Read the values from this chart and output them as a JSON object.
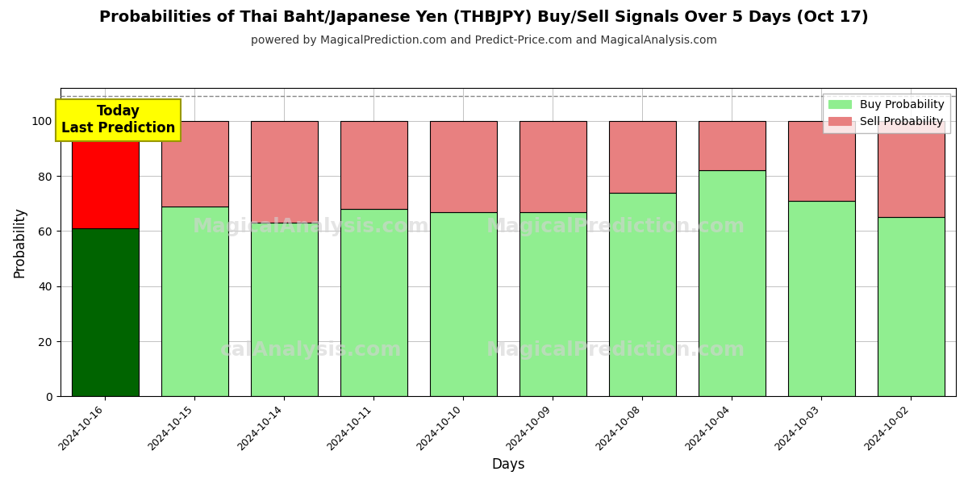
{
  "title": "Probabilities of Thai Baht/Japanese Yen (THBJPY) Buy/Sell Signals Over 5 Days (Oct 17)",
  "subtitle": "powered by MagicalPrediction.com and Predict-Price.com and MagicalAnalysis.com",
  "xlabel": "Days",
  "ylabel": "Probability",
  "watermark_left": "MagicalAnalysis.com",
  "watermark_right": "MagicalPrediction.com",
  "watermark_bottom_left": "calAnalysis.com",
  "watermark_bottom_right": "MagicalPrediction.com",
  "dates": [
    "2024-10-16",
    "2024-10-15",
    "2024-10-14",
    "2024-10-11",
    "2024-10-10",
    "2024-10-09",
    "2024-10-08",
    "2024-10-04",
    "2024-10-03",
    "2024-10-02"
  ],
  "buy_values": [
    61,
    69,
    63,
    68,
    67,
    67,
    74,
    82,
    71,
    65
  ],
  "sell_values": [
    39,
    31,
    37,
    32,
    33,
    33,
    26,
    18,
    29,
    35
  ],
  "today_buy_color": "#006400",
  "today_sell_color": "#ff0000",
  "buy_color": "#90EE90",
  "sell_color": "#e88080",
  "today_label_bg": "#ffff00",
  "today_label_text": "Today\nLast Prediction",
  "legend_buy": "Buy Probability",
  "legend_sell": "Sell Probability",
  "ylim": [
    0,
    112
  ],
  "dashed_line_y": 109,
  "bar_edgecolor": "#000000",
  "bar_linewidth": 0.8,
  "grid_color": "#aaaaaa",
  "background_color": "#ffffff",
  "title_fontsize": 14,
  "subtitle_fontsize": 10,
  "axis_label_fontsize": 12
}
